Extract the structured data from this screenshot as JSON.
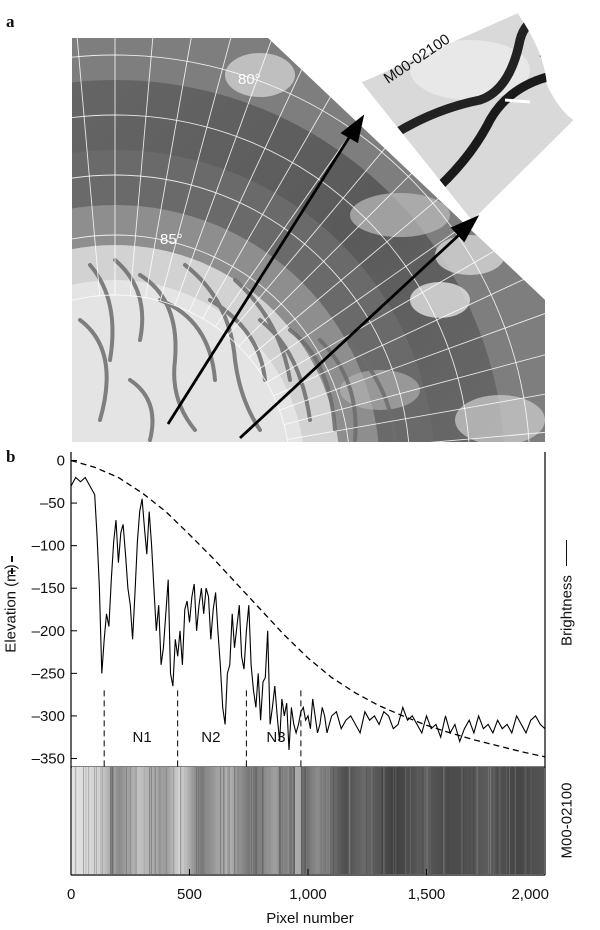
{
  "panel_a": {
    "letter": "a",
    "latitude_labels": [
      "80°",
      "85°"
    ],
    "inset_label": "M00-02100"
  },
  "panel_b": {
    "letter": "b",
    "strip_label": "M00-02100"
  },
  "chart_data": {
    "type": "line",
    "xlabel": "Pixel number",
    "ylabel": "Elevation (m)",
    "y2label": "Brightness",
    "xlim": [
      0,
      2000
    ],
    "ylim": [
      -360,
      10
    ],
    "x_ticks": [
      {
        "value": 0,
        "label": "0"
      },
      {
        "value": 500,
        "label": "500"
      },
      {
        "value": 1000,
        "label": "1,000"
      },
      {
        "value": 1500,
        "label": "1,500"
      },
      {
        "value": 2000,
        "label": "2,000"
      }
    ],
    "y_ticks": [
      {
        "value": 0,
        "label": "0"
      },
      {
        "value": -50,
        "label": "–50"
      },
      {
        "value": -100,
        "label": "–100"
      },
      {
        "value": -150,
        "label": "–150"
      },
      {
        "value": -200,
        "label": "–200"
      },
      {
        "value": -250,
        "label": "–250"
      },
      {
        "value": -300,
        "label": "–300"
      },
      {
        "value": -350,
        "label": "–350"
      }
    ],
    "series": [
      {
        "style": "dashed",
        "x": [
          0,
          100,
          200,
          300,
          400,
          500,
          600,
          700,
          800,
          900,
          1000,
          1100,
          1200,
          1300,
          1400,
          1500,
          1600,
          1700,
          1800,
          1900,
          2000
        ],
        "y": [
          0,
          -8,
          -20,
          -38,
          -60,
          -87,
          -115,
          -145,
          -175,
          -205,
          -232,
          -255,
          -273,
          -288,
          -300,
          -311,
          -320,
          -328,
          -335,
          -342,
          -348
        ]
      },
      {
        "style": "solid",
        "x": [
          0,
          20,
          40,
          60,
          80,
          100,
          110,
          120,
          130,
          140,
          150,
          160,
          170,
          180,
          190,
          200,
          210,
          220,
          230,
          240,
          250,
          260,
          270,
          280,
          290,
          300,
          310,
          320,
          330,
          340,
          350,
          360,
          370,
          380,
          390,
          400,
          410,
          420,
          430,
          440,
          450,
          460,
          470,
          480,
          490,
          500,
          510,
          520,
          530,
          540,
          550,
          560,
          570,
          580,
          590,
          600,
          610,
          620,
          630,
          640,
          650,
          660,
          670,
          680,
          690,
          700,
          710,
          720,
          730,
          740,
          750,
          760,
          770,
          780,
          790,
          800,
          810,
          820,
          830,
          840,
          850,
          860,
          870,
          880,
          890,
          900,
          910,
          920,
          930,
          940,
          950,
          960,
          970,
          980,
          990,
          1000,
          1010,
          1020,
          1030,
          1040,
          1050,
          1060,
          1070,
          1080,
          1090,
          1100,
          1120,
          1140,
          1160,
          1180,
          1200,
          1220,
          1240,
          1260,
          1280,
          1300,
          1320,
          1340,
          1360,
          1380,
          1400,
          1420,
          1440,
          1460,
          1480,
          1500,
          1520,
          1540,
          1560,
          1580,
          1600,
          1620,
          1640,
          1660,
          1680,
          1700,
          1720,
          1740,
          1760,
          1780,
          1800,
          1820,
          1840,
          1860,
          1880,
          1900,
          1920,
          1940,
          1960,
          1980,
          2000
        ],
        "y": [
          -30,
          -20,
          -25,
          -20,
          -30,
          -40,
          -90,
          -150,
          -250,
          -210,
          -180,
          -195,
          -140,
          -95,
          -70,
          -120,
          -85,
          -75,
          -110,
          -150,
          -170,
          -210,
          -155,
          -95,
          -60,
          -45,
          -80,
          -110,
          -60,
          -100,
          -150,
          -200,
          -170,
          -240,
          -220,
          -180,
          -140,
          -250,
          -265,
          -210,
          -230,
          -200,
          -240,
          -175,
          -165,
          -190,
          -160,
          -145,
          -200,
          -170,
          -150,
          -180,
          -150,
          -160,
          -210,
          -175,
          -155,
          -200,
          -240,
          -290,
          -310,
          -250,
          -240,
          -180,
          -220,
          -195,
          -170,
          -230,
          -245,
          -200,
          -170,
          -240,
          -270,
          -290,
          -250,
          -305,
          -260,
          -255,
          -200,
          -310,
          -290,
          -265,
          -300,
          -330,
          -280,
          -300,
          -285,
          -340,
          -290,
          -310,
          -320,
          -310,
          -295,
          -290,
          -305,
          -300,
          -315,
          -280,
          -300,
          -320,
          -310,
          -290,
          -300,
          -320,
          -310,
          -300,
          -295,
          -315,
          -305,
          -300,
          -310,
          -320,
          -295,
          -305,
          -300,
          -310,
          -295,
          -300,
          -315,
          -310,
          -290,
          -305,
          -300,
          -310,
          -320,
          -300,
          -315,
          -310,
          -325,
          -300,
          -320,
          -310,
          -330,
          -315,
          -305,
          -320,
          -300,
          -315,
          -310,
          -320,
          -305,
          -315,
          -310,
          -320,
          -300,
          -310,
          -320,
          -305,
          -300,
          -310,
          -315
        ]
      }
    ],
    "annotations": [
      {
        "text": "N1",
        "x": 300,
        "y": -325
      },
      {
        "text": "N2",
        "x": 590,
        "y": -325
      },
      {
        "text": "N3",
        "x": 865,
        "y": -325
      }
    ],
    "drop_lines_x": [
      140,
      450,
      740,
      970
    ]
  }
}
